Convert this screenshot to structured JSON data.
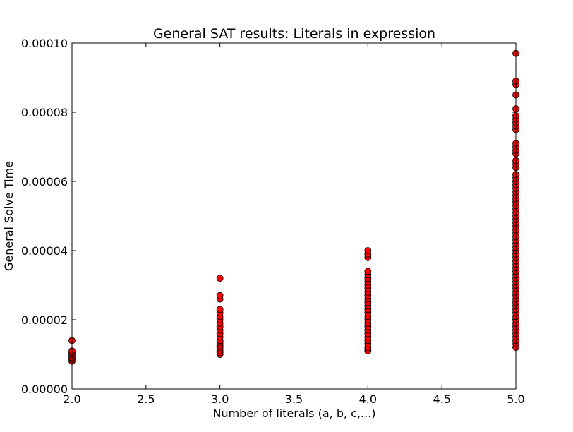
{
  "chart_data": {
    "type": "scatter",
    "title": "General SAT results: Literals in expression",
    "xlabel": "Number of literals (a, b, c,...)",
    "ylabel": "General Solve Time",
    "xlim": [
      2.0,
      5.0
    ],
    "ylim": [
      0.0,
      0.0001
    ],
    "xticks": [
      2.0,
      2.5,
      3.0,
      3.5,
      4.0,
      4.5,
      5.0
    ],
    "xtick_labels": [
      "2.0",
      "2.5",
      "3.0",
      "3.5",
      "4.0",
      "4.5",
      "5.0"
    ],
    "yticks": [
      0.0,
      2e-05,
      4e-05,
      6e-05,
      8e-05,
      0.0001
    ],
    "ytick_labels": [
      "0.00000",
      "0.00002",
      "0.00004",
      "0.00006",
      "0.00008",
      "0.00010"
    ],
    "grid": false,
    "marker_color": "#ff0000",
    "marker_edge_color": "#000000",
    "series": [
      {
        "points": [
          [
            2,
            8e-06
          ],
          [
            2,
            8.5e-06
          ],
          [
            2,
            9e-06
          ],
          [
            2,
            9.5e-06
          ],
          [
            2,
            1e-05
          ],
          [
            2,
            1.05e-05
          ],
          [
            2,
            1.1e-05
          ],
          [
            2,
            1.4e-05
          ],
          [
            3,
            1e-05
          ],
          [
            3,
            1.05e-05
          ],
          [
            3,
            1.1e-05
          ],
          [
            3,
            1.15e-05
          ],
          [
            3,
            1.2e-05
          ],
          [
            3,
            1.25e-05
          ],
          [
            3,
            1.3e-05
          ],
          [
            3,
            1.35e-05
          ],
          [
            3,
            1.4e-05
          ],
          [
            3,
            1.5e-05
          ],
          [
            3,
            1.6e-05
          ],
          [
            3,
            1.7e-05
          ],
          [
            3,
            1.8e-05
          ],
          [
            3,
            1.9e-05
          ],
          [
            3,
            2e-05
          ],
          [
            3,
            2.1e-05
          ],
          [
            3,
            2.2e-05
          ],
          [
            3,
            2.3e-05
          ],
          [
            3,
            2.6e-05
          ],
          [
            3,
            2.7e-05
          ],
          [
            3,
            3.2e-05
          ],
          [
            4,
            1.1e-05
          ],
          [
            4,
            1.15e-05
          ],
          [
            4,
            1.2e-05
          ],
          [
            4,
            1.3e-05
          ],
          [
            4,
            1.4e-05
          ],
          [
            4,
            1.5e-05
          ],
          [
            4,
            1.6e-05
          ],
          [
            4,
            1.7e-05
          ],
          [
            4,
            1.8e-05
          ],
          [
            4,
            1.9e-05
          ],
          [
            4,
            2e-05
          ],
          [
            4,
            2.1e-05
          ],
          [
            4,
            2.2e-05
          ],
          [
            4,
            2.3e-05
          ],
          [
            4,
            2.4e-05
          ],
          [
            4,
            2.5e-05
          ],
          [
            4,
            2.6e-05
          ],
          [
            4,
            2.7e-05
          ],
          [
            4,
            2.8e-05
          ],
          [
            4,
            2.9e-05
          ],
          [
            4,
            3e-05
          ],
          [
            4,
            3.1e-05
          ],
          [
            4,
            3.2e-05
          ],
          [
            4,
            3.3e-05
          ],
          [
            4,
            3.4e-05
          ],
          [
            4,
            3.8e-05
          ],
          [
            4,
            3.9e-05
          ],
          [
            4,
            4e-05
          ],
          [
            5,
            1.2e-05
          ],
          [
            5,
            1.3e-05
          ],
          [
            5,
            1.4e-05
          ],
          [
            5,
            1.5e-05
          ],
          [
            5,
            1.6e-05
          ],
          [
            5,
            1.7e-05
          ],
          [
            5,
            1.8e-05
          ],
          [
            5,
            1.9e-05
          ],
          [
            5,
            2e-05
          ],
          [
            5,
            2.1e-05
          ],
          [
            5,
            2.2e-05
          ],
          [
            5,
            2.3e-05
          ],
          [
            5,
            2.4e-05
          ],
          [
            5,
            2.5e-05
          ],
          [
            5,
            2.6e-05
          ],
          [
            5,
            2.7e-05
          ],
          [
            5,
            2.8e-05
          ],
          [
            5,
            2.9e-05
          ],
          [
            5,
            3e-05
          ],
          [
            5,
            3.1e-05
          ],
          [
            5,
            3.2e-05
          ],
          [
            5,
            3.3e-05
          ],
          [
            5,
            3.4e-05
          ],
          [
            5,
            3.5e-05
          ],
          [
            5,
            3.6e-05
          ],
          [
            5,
            3.7e-05
          ],
          [
            5,
            3.8e-05
          ],
          [
            5,
            3.9e-05
          ],
          [
            5,
            4e-05
          ],
          [
            5,
            4.1e-05
          ],
          [
            5,
            4.2e-05
          ],
          [
            5,
            4.3e-05
          ],
          [
            5,
            4.4e-05
          ],
          [
            5,
            4.5e-05
          ],
          [
            5,
            4.6e-05
          ],
          [
            5,
            4.7e-05
          ],
          [
            5,
            4.8e-05
          ],
          [
            5,
            4.9e-05
          ],
          [
            5,
            5e-05
          ],
          [
            5,
            5.1e-05
          ],
          [
            5,
            5.2e-05
          ],
          [
            5,
            5.3e-05
          ],
          [
            5,
            5.4e-05
          ],
          [
            5,
            5.5e-05
          ],
          [
            5,
            5.6e-05
          ],
          [
            5,
            5.7e-05
          ],
          [
            5,
            5.8e-05
          ],
          [
            5,
            5.9e-05
          ],
          [
            5,
            6e-05
          ],
          [
            5,
            6.1e-05
          ],
          [
            5,
            6.2e-05
          ],
          [
            5,
            6.4e-05
          ],
          [
            5,
            6.5e-05
          ],
          [
            5,
            6.6e-05
          ],
          [
            5,
            6.8e-05
          ],
          [
            5,
            6.9e-05
          ],
          [
            5,
            7e-05
          ],
          [
            5,
            7.1e-05
          ],
          [
            5,
            7.5e-05
          ],
          [
            5,
            7.6e-05
          ],
          [
            5,
            7.7e-05
          ],
          [
            5,
            7.8e-05
          ],
          [
            5,
            7.9e-05
          ],
          [
            5,
            8.1e-05
          ],
          [
            5,
            8.5e-05
          ],
          [
            5,
            8.8e-05
          ],
          [
            5,
            8.9e-05
          ],
          [
            5,
            9.7e-05
          ]
        ]
      }
    ]
  }
}
